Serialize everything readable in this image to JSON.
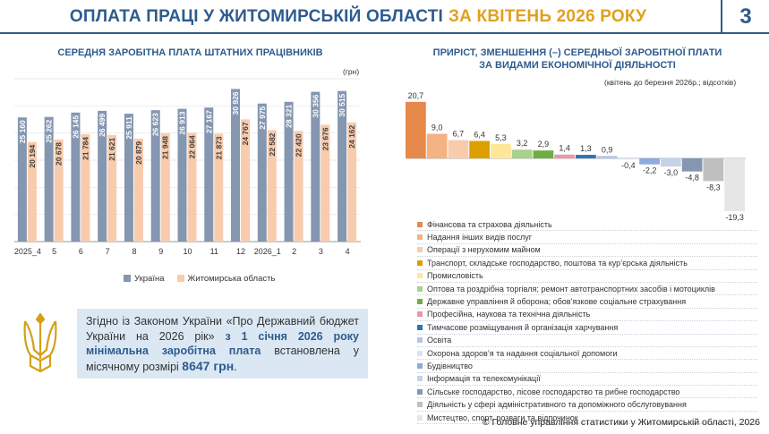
{
  "header": {
    "title_main": "ОПЛАТА ПРАЦІ У ЖИТОМИРСЬКІЙ ОБЛАСТІ",
    "title_accent": "ЗА КВІТЕНЬ 2026 РОКУ",
    "page_number": "3"
  },
  "left_chart": {
    "title": "СЕРЕДНЯ ЗАРОБІТНА ПЛАТА ШТАТНИХ ПРАЦІВНИКІВ",
    "unit": "(грн)"
  },
  "right_chart": {
    "title_line1": "ПРИРІСТ, ЗМЕНШЕННЯ (–) СЕРЕДНЬОЇ ЗАРОБІТНОЇ ПЛАТИ",
    "title_line2": "ЗА ВИДАМИ ЕКОНОМІЧНОЇ ДІЯЛЬНОСТІ",
    "note": "(квітень до березня 2026р.; відсотків)"
  },
  "info": {
    "text_part1": "Згідно із Законом України «Про Державний бюджет України на 2026 рік»",
    "text_bold1": "з 1 січня 2026 року мінімальна заробітна плата",
    "text_part2": "встановлена у місячному розмірі",
    "amount": "8647 грн",
    "end": "."
  },
  "footer": {
    "text": "© Головне управління статистики у Житомирській області, 2026"
  },
  "chart_data": [
    {
      "type": "bar",
      "title": "СЕРЕДНЯ ЗАРОБІТНА ПЛАТА ШТАТНИХ ПРАЦІВНИКІВ",
      "ylabel": "(грн)",
      "categories": [
        "2025_4",
        "5",
        "6",
        "7",
        "8",
        "9",
        "10",
        "11",
        "12",
        "2026_1",
        "2",
        "3",
        "4"
      ],
      "series": [
        {
          "name": "Україна",
          "color": "#8496b0",
          "values": [
            25160,
            25262,
            26145,
            26499,
            25911,
            26623,
            26913,
            27167,
            30926,
            27975,
            28321,
            30356,
            30515
          ],
          "labels": [
            "25 160",
            "25 262",
            "26 145",
            "26 499",
            "25 911",
            "26 623",
            "26 913",
            "27 167",
            "30 926",
            "27 975",
            "28 321",
            "30 356",
            "30 515"
          ]
        },
        {
          "name": "Житомирська область",
          "color": "#f8cbad",
          "values": [
            20194,
            20678,
            21784,
            21621,
            20879,
            21948,
            22064,
            21873,
            24767,
            22582,
            22420,
            23676,
            24162
          ],
          "labels": [
            "20 194",
            "20 678",
            "21 784",
            "21 621",
            "20 879",
            "21 948",
            "22 064",
            "21 873",
            "24 767",
            "22 582",
            "22 420",
            "23 676",
            "24 162"
          ]
        }
      ],
      "ylim": [
        0,
        33000
      ],
      "grid": true,
      "legend": "bottom"
    },
    {
      "type": "bar",
      "title": "ПРИРІСТ, ЗМЕНШЕННЯ (–) СЕРЕДНЬОЇ ЗАРОБІТНОЇ ПЛАТИ ЗА ВИДАМИ ЕКОНОМІЧНОЇ ДІЯЛЬНОСТІ",
      "subtitle": "(квітень до березня 2026р.; відсотків)",
      "categories": [
        "Фінансова та страхова діяльність",
        "Надання інших видів послуг",
        "Операції з нерухомим майном",
        "Транспорт, складське господарство, поштова та кур’єрська діяльність",
        "Промисловість",
        "Оптова та роздрібна торгівля; ремонт автотранспортних засобів і мотоциклів",
        "Державне управління й оборона; обов’язкове соціальне страхування",
        "Професійна, наукова та технічна діяльність",
        "Тимчасове розміщування й організація харчування",
        "Освіта",
        "Охорона здоров’я та надання соціальної допомоги",
        "Будівництво",
        "Інформація та телекомунікації",
        "Сільське господарство, лісове господарство та рибне господарство",
        "Діяльність у сфері адміністративного та допоміжного обслуговування",
        "Мистецтво, спорт, розваги та відпочинок"
      ],
      "values": [
        20.7,
        9.0,
        6.7,
        6.4,
        5.3,
        3.2,
        2.9,
        1.4,
        1.3,
        0.9,
        -0.4,
        -2.2,
        -3.0,
        -4.8,
        -8.3,
        -19.3
      ],
      "labels": [
        "20,7",
        "9,0",
        "6,7",
        "6,4",
        "5,3",
        "3,2",
        "2,9",
        "1,4",
        "1,3",
        "0,9",
        "-0,4",
        "-2,2",
        "-3,0",
        "-4,8",
        "-8,3",
        "-19,3"
      ],
      "colors": [
        "#e6894a",
        "#f4b183",
        "#f8cbad",
        "#dba000",
        "#ffe699",
        "#a9d18e",
        "#70ad47",
        "#e899a6",
        "#2e75b6",
        "#b4c7e7",
        "#dae3f3",
        "#8faadc",
        "#c5d2e8",
        "#8496b0",
        "#bfbfbf",
        "#e7e6e6"
      ],
      "legend": "bottom"
    }
  ]
}
